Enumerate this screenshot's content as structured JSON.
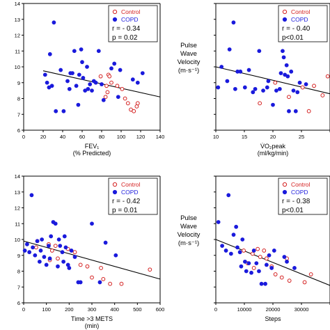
{
  "colors": {
    "control": "#d42020",
    "copd": "#1a1adc",
    "axis": "#000000",
    "trend": "#000000"
  },
  "shared": {
    "ylabel_lines": [
      "Pulse",
      "Wave",
      "Velocity",
      "(m·s⁻¹)"
    ]
  },
  "chart_data": [
    {
      "type": "scatter",
      "id": "fev1",
      "xlabel_lines": [
        "FEV₁",
        "(% Predicted)"
      ],
      "xlim": [
        0,
        140
      ],
      "ylim": [
        6,
        14
      ],
      "xticks": [
        "0",
        "20",
        "40",
        "60",
        "80",
        "100",
        "120",
        "140"
      ],
      "yticks": [
        "6",
        "7",
        "8",
        "9",
        "10",
        "11",
        "12",
        "13",
        "14"
      ],
      "legend": {
        "entries": [
          "Control",
          "COPD"
        ],
        "stats": [
          "r = - 0.34",
          "p = 0.02"
        ]
      },
      "series": [
        {
          "name": "Control",
          "points": [
            [
              79,
              9.4
            ],
            [
              87,
              9.5
            ],
            [
              88,
              9.4
            ],
            [
              85,
              8.8
            ],
            [
              86,
              8.4
            ],
            [
              90,
              9.0
            ],
            [
              84,
              8.1
            ],
            [
              96,
              8.8
            ],
            [
              101,
              8.6
            ],
            [
              104,
              8.0
            ],
            [
              107,
              7.7
            ],
            [
              110,
              7.3
            ],
            [
              113,
              7.2
            ],
            [
              116,
              7.5
            ],
            [
              117,
              7.7
            ]
          ]
        },
        {
          "name": "COPD",
          "points": [
            [
              31,
              12.8
            ],
            [
              27,
              10.8
            ],
            [
              22,
              9.5
            ],
            [
              24,
              9.0
            ],
            [
              26,
              8.7
            ],
            [
              29,
              8.8
            ],
            [
              33,
              7.2
            ],
            [
              38,
              9.8
            ],
            [
              41,
              7.2
            ],
            [
              45,
              9.1
            ],
            [
              47,
              8.6
            ],
            [
              48,
              9.6
            ],
            [
              50,
              9.6
            ],
            [
              52,
              11.0
            ],
            [
              54,
              8.8
            ],
            [
              56,
              7.6
            ],
            [
              57,
              9.5
            ],
            [
              59,
              11.1
            ],
            [
              60,
              10.3
            ],
            [
              61,
              9.3
            ],
            [
              63,
              8.5
            ],
            [
              65,
              10.0
            ],
            [
              66,
              8.6
            ],
            [
              68,
              8.9
            ],
            [
              70,
              8.5
            ],
            [
              72,
              9.1
            ],
            [
              74,
              9.0
            ],
            [
              77,
              11.0
            ],
            [
              80,
              8.9
            ],
            [
              82,
              7.9
            ],
            [
              90,
              9.9
            ],
            [
              93,
              10.2
            ],
            [
              97,
              8.1
            ],
            [
              99,
              9.8
            ],
            [
              112,
              9.2
            ],
            [
              117,
              9.0
            ],
            [
              122,
              9.6
            ]
          ]
        }
      ],
      "trend": [
        [
          20,
          9.75
        ],
        [
          140,
          8.1
        ]
      ]
    },
    {
      "type": "scatter",
      "id": "vo2",
      "xlabel_lines": [
        "V̇O₂peak",
        "(ml/kg/min)"
      ],
      "xlim": [
        10,
        30
      ],
      "ylim": [
        6,
        14
      ],
      "xticks": [
        "10",
        "15",
        "20",
        "25",
        "30"
      ],
      "yticks": [],
      "legend": {
        "entries": [
          "Control",
          "COPD"
        ],
        "stats": [
          "r = - 0.40",
          "p<0.01"
        ]
      },
      "series": [
        {
          "name": "Control",
          "points": [
            [
              17.7,
              7.7
            ],
            [
              20.4,
              9.0
            ],
            [
              22.8,
              8.1
            ],
            [
              25.2,
              8.7
            ],
            [
              26.3,
              7.2
            ],
            [
              27.2,
              8.8
            ],
            [
              28.7,
              8.2
            ],
            [
              29.6,
              9.4
            ]
          ]
        },
        {
          "name": "COPD",
          "points": [
            [
              10.4,
              8.7
            ],
            [
              11.0,
              10.0
            ],
            [
              12.0,
              9.1
            ],
            [
              12.4,
              11.1
            ],
            [
              13.1,
              12.8
            ],
            [
              13.4,
              8.6
            ],
            [
              13.8,
              9.7
            ],
            [
              14.3,
              9.7
            ],
            [
              15.1,
              8.7
            ],
            [
              15.8,
              9.8
            ],
            [
              16.5,
              8.4
            ],
            [
              16.9,
              8.6
            ],
            [
              17.6,
              11.0
            ],
            [
              18.3,
              8.5
            ],
            [
              19.0,
              8.7
            ],
            [
              19.2,
              9.1
            ],
            [
              20.0,
              7.6
            ],
            [
              20.6,
              8.5
            ],
            [
              21.2,
              8.6
            ],
            [
              21.4,
              9.6
            ],
            [
              21.7,
              11.0
            ],
            [
              21.9,
              10.6
            ],
            [
              22.1,
              9.5
            ],
            [
              22.4,
              10.1
            ],
            [
              22.6,
              9.4
            ],
            [
              22.8,
              7.2
            ],
            [
              23.2,
              9.7
            ],
            [
              23.6,
              8.5
            ],
            [
              24.0,
              7.2
            ],
            [
              24.3,
              8.4
            ],
            [
              24.7,
              9.0
            ],
            [
              25.8,
              8.9
            ]
          ]
        }
      ],
      "trend": [
        [
          10,
          10.0
        ],
        [
          30,
          8.3
        ]
      ]
    },
    {
      "type": "scatter",
      "id": "mets",
      "xlabel_lines": [
        "Time >3 METS",
        "(min)"
      ],
      "xlim": [
        0,
        600
      ],
      "ylim": [
        6,
        14
      ],
      "xticks": [
        "0",
        "100",
        "200",
        "300",
        "400",
        "500",
        "600"
      ],
      "yticks": [
        "6",
        "7",
        "8",
        "9",
        "10",
        "11",
        "12",
        "13",
        "14"
      ],
      "legend": {
        "entries": [
          "Control",
          "COPD"
        ],
        "stats": [
          "r = - 0.42",
          "p = 0.01"
        ]
      },
      "series": [
        {
          "name": "Control",
          "points": [
            [
              55,
              9.5
            ],
            [
              60,
              9.9
            ],
            [
              110,
              9.7
            ],
            [
              115,
              8.7
            ],
            [
              125,
              9.3
            ],
            [
              140,
              9.6
            ],
            [
              150,
              8.8
            ],
            [
              195,
              9.4
            ],
            [
              225,
              9.2
            ],
            [
              250,
              8.4
            ],
            [
              280,
              8.3
            ],
            [
              300,
              7.6
            ],
            [
              340,
              8.2
            ],
            [
              350,
              7.5
            ],
            [
              380,
              7.2
            ],
            [
              430,
              7.2
            ],
            [
              555,
              8.1
            ]
          ]
        },
        {
          "name": "COPD",
          "points": [
            [
              5,
              9.3
            ],
            [
              15,
              9.7
            ],
            [
              25,
              9.2
            ],
            [
              35,
              12.8
            ],
            [
              40,
              9.5
            ],
            [
              50,
              9.0
            ],
            [
              60,
              9.9
            ],
            [
              70,
              8.6
            ],
            [
              75,
              9.3
            ],
            [
              80,
              10.0
            ],
            [
              90,
              8.9
            ],
            [
              100,
              8.4
            ],
            [
              110,
              9.6
            ],
            [
              115,
              8.8
            ],
            [
              120,
              10.2
            ],
            [
              130,
              11.1
            ],
            [
              140,
              11.0
            ],
            [
              150,
              8.3
            ],
            [
              155,
              10.0
            ],
            [
              160,
              9.6
            ],
            [
              170,
              9.2
            ],
            [
              175,
              8.6
            ],
            [
              180,
              10.2
            ],
            [
              185,
              9.5
            ],
            [
              195,
              8.4
            ],
            [
              200,
              8.2
            ],
            [
              210,
              9.3
            ],
            [
              225,
              8.9
            ],
            [
              240,
              7.3
            ],
            [
              250,
              7.3
            ],
            [
              300,
              11.0
            ],
            [
              335,
              7.3
            ],
            [
              360,
              9.8
            ],
            [
              405,
              9.0
            ]
          ]
        }
      ],
      "trend": [
        [
          0,
          9.9
        ],
        [
          600,
          7.5
        ]
      ]
    },
    {
      "type": "scatter",
      "id": "steps",
      "xlabel_lines": [
        "Steps"
      ],
      "xlim": [
        0,
        45000
      ],
      "ylim": [
        6,
        14
      ],
      "xticks": [
        "0",
        "10000",
        "20000",
        "30000",
        "40000"
      ],
      "yticks": [],
      "legend": {
        "entries": [
          "Control",
          "COPD"
        ],
        "stats": [
          "r = - 0.38",
          "p<0.01"
        ]
      },
      "series": [
        {
          "name": "Control",
          "points": [
            [
              11000,
              9.3
            ],
            [
              12500,
              8.5
            ],
            [
              14500,
              9.1
            ],
            [
              15000,
              8.2
            ],
            [
              16500,
              9.4
            ],
            [
              17500,
              8.9
            ],
            [
              19000,
              9.3
            ],
            [
              20000,
              8.8
            ],
            [
              22000,
              8.3
            ],
            [
              23500,
              7.8
            ],
            [
              26000,
              7.6
            ],
            [
              28000,
              8.8
            ],
            [
              29000,
              7.4
            ],
            [
              35000,
              7.3
            ],
            [
              37500,
              7.8
            ]
          ]
        },
        {
          "name": "COPD",
          "points": [
            [
              1000,
              11.1
            ],
            [
              2500,
              9.6
            ],
            [
              4000,
              9.3
            ],
            [
              5000,
              12.8
            ],
            [
              6000,
              9.1
            ],
            [
              7000,
              10.3
            ],
            [
              8000,
              10.8
            ],
            [
              8500,
              9.5
            ],
            [
              9500,
              9.2
            ],
            [
              10000,
              8.3
            ],
            [
              10500,
              10.0
            ],
            [
              11500,
              8.6
            ],
            [
              12000,
              8.0
            ],
            [
              13000,
              8.5
            ],
            [
              14000,
              7.9
            ],
            [
              15000,
              9.3
            ],
            [
              16000,
              8.5
            ],
            [
              17000,
              8.0
            ],
            [
              18000,
              7.2
            ],
            [
              19500,
              7.2
            ],
            [
              20000,
              8.4
            ],
            [
              21000,
              9.0
            ],
            [
              22000,
              8.2
            ],
            [
              23000,
              9.3
            ],
            [
              27000,
              8.9
            ],
            [
              28000,
              8.6
            ],
            [
              31000,
              8.2
            ]
          ]
        }
      ],
      "trend": [
        [
          0,
          10.0
        ],
        [
          45000,
          7.1
        ]
      ]
    }
  ]
}
